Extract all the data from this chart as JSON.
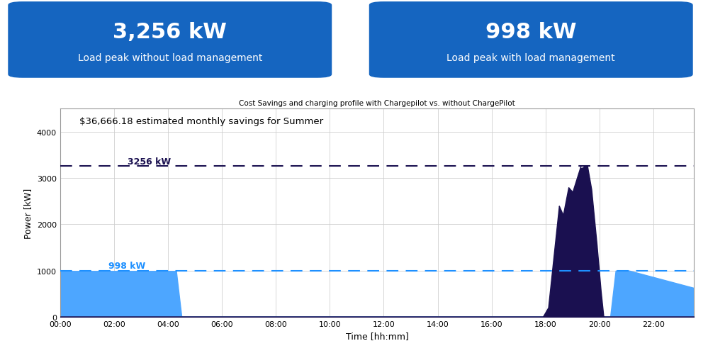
{
  "title": "Cost Savings and charging profile with Chargepilot vs. without ChargePilot",
  "subtitle": "$36,666.18 estimated monthly savings for Summer",
  "xlabel": "Time [hh:mm]",
  "ylabel": "Power [kW]",
  "ylim": [
    0,
    4500
  ],
  "yticks": [
    0,
    1000,
    2000,
    3000,
    4000
  ],
  "managed_grid_max": 998,
  "unmanaged_grid_max": 3256,
  "managed_grid_label": "998 kW",
  "unmanaged_grid_label": "3256 kW",
  "bg_color": "#ffffff",
  "box_bg": "#1565C0",
  "box1_title": "3,256 kW",
  "box1_sub": "Load peak without load management",
  "box2_title": "998 kW",
  "box2_sub": "Load peak with load management",
  "managed_charging_color": "#4da6ff",
  "unmanaged_charging_color": "#1a1050",
  "site_load_color": "#d8d8d8",
  "managed_line_color": "#1e90ff",
  "unmanaged_line_color": "#1a1050",
  "grid_color": "#cccccc",
  "xtick_labels": [
    "00:00",
    "02:00",
    "04:00",
    "06:00",
    "08:00",
    "10:00",
    "12:00",
    "14:00",
    "16:00",
    "18:00",
    "20:00",
    "22:00"
  ],
  "xtick_hours": [
    0,
    2,
    4,
    6,
    8,
    10,
    12,
    14,
    16,
    18,
    20,
    22
  ]
}
